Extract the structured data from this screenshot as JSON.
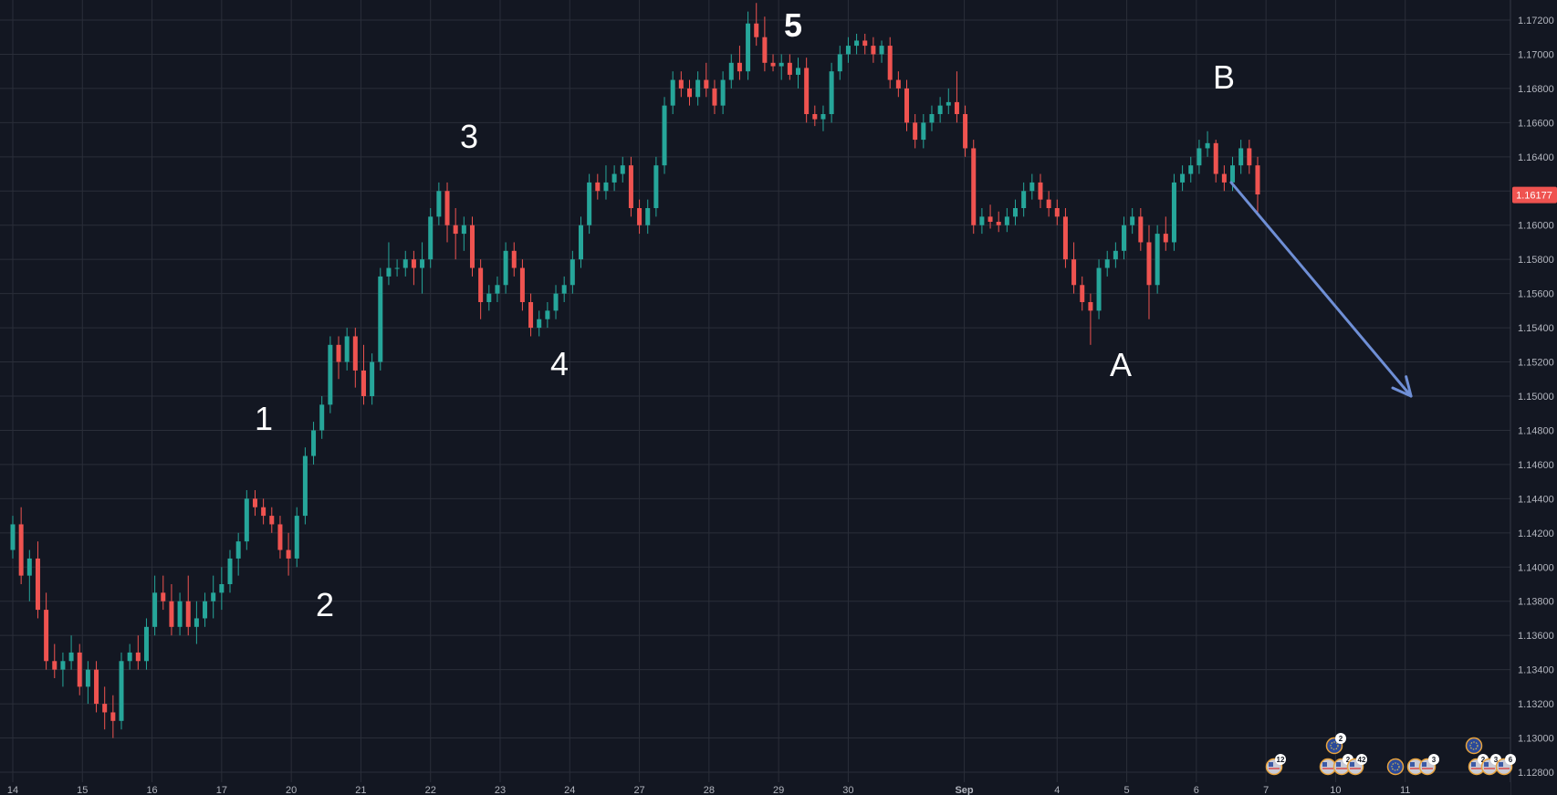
{
  "chart_data": {
    "type": "candlestick",
    "y_axis": {
      "ticks": [
        "1.17200",
        "1.17000",
        "1.16800",
        "1.16600",
        "1.16400",
        "1.16200",
        "1.16000",
        "1.15800",
        "1.15600",
        "1.15400",
        "1.15200",
        "1.15000",
        "1.14800",
        "1.14600",
        "1.14400",
        "1.14200",
        "1.14000",
        "1.13800",
        "1.13600",
        "1.13400",
        "1.13200",
        "1.13000",
        "1.12800"
      ],
      "range": [
        1.1274,
        1.1736
      ],
      "current_price": "1.16177"
    },
    "x_axis": {
      "ticks": [
        {
          "label": "14",
          "i": 0
        },
        {
          "label": "15",
          "i": 12
        },
        {
          "label": "16",
          "i": 24
        },
        {
          "label": "17",
          "i": 36
        },
        {
          "label": "20",
          "i": 48
        },
        {
          "label": "21",
          "i": 60
        },
        {
          "label": "22",
          "i": 72
        },
        {
          "label": "23",
          "i": 84
        },
        {
          "label": "24",
          "i": 96
        },
        {
          "label": "27",
          "i": 108
        },
        {
          "label": "28",
          "i": 120
        },
        {
          "label": "29",
          "i": 132
        },
        {
          "label": "30",
          "i": 144
        },
        {
          "label": "Sep",
          "i": 164
        },
        {
          "label": "4",
          "i": 180
        },
        {
          "label": "5",
          "i": 192
        },
        {
          "label": "6",
          "i": 204
        },
        {
          "label": "7",
          "i": 216
        },
        {
          "label": "10",
          "i": 228
        },
        {
          "label": "11",
          "i": 240
        }
      ],
      "total_slots": 252
    },
    "candles": [
      [
        1.141,
        1.143,
        1.1405,
        1.1425
      ],
      [
        1.1425,
        1.1435,
        1.139,
        1.1395
      ],
      [
        1.1395,
        1.141,
        1.138,
        1.1405
      ],
      [
        1.1405,
        1.1415,
        1.137,
        1.1375
      ],
      [
        1.1375,
        1.1385,
        1.134,
        1.1345
      ],
      [
        1.1345,
        1.1355,
        1.1335,
        1.134
      ],
      [
        1.134,
        1.135,
        1.133,
        1.1345
      ],
      [
        1.1345,
        1.136,
        1.134,
        1.135
      ],
      [
        1.135,
        1.1355,
        1.1325,
        1.133
      ],
      [
        1.133,
        1.1345,
        1.132,
        1.134
      ],
      [
        1.134,
        1.1345,
        1.1315,
        1.132
      ],
      [
        1.132,
        1.133,
        1.1305,
        1.1315
      ],
      [
        1.1315,
        1.1325,
        1.13,
        1.131
      ],
      [
        1.131,
        1.135,
        1.1305,
        1.1345
      ],
      [
        1.1345,
        1.1355,
        1.134,
        1.135
      ],
      [
        1.135,
        1.136,
        1.134,
        1.1345
      ],
      [
        1.1345,
        1.137,
        1.134,
        1.1365
      ],
      [
        1.1365,
        1.1395,
        1.136,
        1.1385
      ],
      [
        1.1385,
        1.1395,
        1.1375,
        1.138
      ],
      [
        1.138,
        1.139,
        1.136,
        1.1365
      ],
      [
        1.1365,
        1.1385,
        1.136,
        1.138
      ],
      [
        1.138,
        1.1395,
        1.136,
        1.1365
      ],
      [
        1.1365,
        1.138,
        1.1355,
        1.137
      ],
      [
        1.137,
        1.1385,
        1.1365,
        1.138
      ],
      [
        1.138,
        1.1395,
        1.137,
        1.1385
      ],
      [
        1.1385,
        1.14,
        1.1375,
        1.139
      ],
      [
        1.139,
        1.141,
        1.1385,
        1.1405
      ],
      [
        1.1405,
        1.142,
        1.1395,
        1.1415
      ],
      [
        1.1415,
        1.1445,
        1.141,
        1.144
      ],
      [
        1.144,
        1.1445,
        1.143,
        1.1435
      ],
      [
        1.1435,
        1.144,
        1.1425,
        1.143
      ],
      [
        1.143,
        1.1435,
        1.142,
        1.1425
      ],
      [
        1.1425,
        1.143,
        1.1405,
        1.141
      ],
      [
        1.141,
        1.142,
        1.1395,
        1.1405
      ],
      [
        1.1405,
        1.1435,
        1.14,
        1.143
      ],
      [
        1.143,
        1.147,
        1.1425,
        1.1465
      ],
      [
        1.1465,
        1.1485,
        1.146,
        1.148
      ],
      [
        1.148,
        1.15,
        1.1475,
        1.1495
      ],
      [
        1.1495,
        1.1535,
        1.149,
        1.153
      ],
      [
        1.153,
        1.1535,
        1.151,
        1.152
      ],
      [
        1.152,
        1.154,
        1.1515,
        1.1535
      ],
      [
        1.1535,
        1.154,
        1.1505,
        1.1515
      ],
      [
        1.1515,
        1.153,
        1.1495,
        1.15
      ],
      [
        1.15,
        1.1525,
        1.1495,
        1.152
      ],
      [
        1.152,
        1.1575,
        1.1515,
        1.157
      ],
      [
        1.157,
        1.159,
        1.1565,
        1.1575
      ],
      [
        1.1575,
        1.158,
        1.157,
        1.1575
      ],
      [
        1.1575,
        1.1585,
        1.157,
        1.158
      ],
      [
        1.158,
        1.1585,
        1.1565,
        1.1575
      ],
      [
        1.1575,
        1.159,
        1.156,
        1.158
      ],
      [
        1.158,
        1.161,
        1.1575,
        1.1605
      ],
      [
        1.1605,
        1.1625,
        1.16,
        1.162
      ],
      [
        1.162,
        1.1625,
        1.159,
        1.16
      ],
      [
        1.16,
        1.161,
        1.158,
        1.1595
      ],
      [
        1.1595,
        1.1605,
        1.1585,
        1.16
      ],
      [
        1.16,
        1.1605,
        1.157,
        1.1575
      ],
      [
        1.1575,
        1.158,
        1.1545,
        1.1555
      ],
      [
        1.1555,
        1.1565,
        1.155,
        1.156
      ],
      [
        1.156,
        1.157,
        1.1555,
        1.1565
      ],
      [
        1.1565,
        1.159,
        1.156,
        1.1585
      ],
      [
        1.1585,
        1.159,
        1.157,
        1.1575
      ],
      [
        1.1575,
        1.158,
        1.155,
        1.1555
      ],
      [
        1.1555,
        1.156,
        1.1535,
        1.154
      ],
      [
        1.154,
        1.155,
        1.1535,
        1.1545
      ],
      [
        1.1545,
        1.1555,
        1.154,
        1.155
      ],
      [
        1.155,
        1.1565,
        1.1545,
        1.156
      ],
      [
        1.156,
        1.157,
        1.1555,
        1.1565
      ],
      [
        1.1565,
        1.1585,
        1.156,
        1.158
      ],
      [
        1.158,
        1.1605,
        1.1575,
        1.16
      ],
      [
        1.16,
        1.163,
        1.1595,
        1.1625
      ],
      [
        1.1625,
        1.163,
        1.1615,
        1.162
      ],
      [
        1.162,
        1.1635,
        1.1615,
        1.1625
      ],
      [
        1.1625,
        1.1635,
        1.162,
        1.163
      ],
      [
        1.163,
        1.164,
        1.1625,
        1.1635
      ],
      [
        1.1635,
        1.164,
        1.1605,
        1.161
      ],
      [
        1.161,
        1.1615,
        1.1595,
        1.16
      ],
      [
        1.16,
        1.1615,
        1.1595,
        1.161
      ],
      [
        1.161,
        1.164,
        1.1605,
        1.1635
      ],
      [
        1.1635,
        1.1675,
        1.163,
        1.167
      ],
      [
        1.167,
        1.169,
        1.1665,
        1.1685
      ],
      [
        1.1685,
        1.169,
        1.1675,
        1.168
      ],
      [
        1.168,
        1.1685,
        1.167,
        1.1675
      ],
      [
        1.1675,
        1.169,
        1.167,
        1.1685
      ],
      [
        1.1685,
        1.1695,
        1.1675,
        1.168
      ],
      [
        1.168,
        1.1685,
        1.1665,
        1.167
      ],
      [
        1.167,
        1.169,
        1.1665,
        1.1685
      ],
      [
        1.1685,
        1.17,
        1.168,
        1.1695
      ],
      [
        1.1695,
        1.1705,
        1.1685,
        1.169
      ],
      [
        1.169,
        1.1725,
        1.1685,
        1.1718
      ],
      [
        1.1718,
        1.173,
        1.1705,
        1.171
      ],
      [
        1.171,
        1.1722,
        1.169,
        1.1695
      ],
      [
        1.1695,
        1.17,
        1.169,
        1.1693
      ],
      [
        1.1693,
        1.17,
        1.1685,
        1.1695
      ],
      [
        1.1695,
        1.17,
        1.1685,
        1.1688
      ],
      [
        1.1688,
        1.1698,
        1.168,
        1.1692
      ],
      [
        1.1692,
        1.1698,
        1.166,
        1.1665
      ],
      [
        1.1665,
        1.167,
        1.1658,
        1.1662
      ],
      [
        1.1662,
        1.167,
        1.1655,
        1.1665
      ],
      [
        1.1665,
        1.1695,
        1.166,
        1.169
      ],
      [
        1.169,
        1.1705,
        1.1685,
        1.17
      ],
      [
        1.17,
        1.171,
        1.1695,
        1.1705
      ],
      [
        1.1705,
        1.1712,
        1.17,
        1.1708
      ],
      [
        1.1708,
        1.1712,
        1.17,
        1.1705
      ],
      [
        1.1705,
        1.171,
        1.1695,
        1.17
      ],
      [
        1.17,
        1.1708,
        1.1695,
        1.1705
      ],
      [
        1.1705,
        1.171,
        1.168,
        1.1685
      ],
      [
        1.1685,
        1.169,
        1.1675,
        1.168
      ],
      [
        1.168,
        1.1685,
        1.1655,
        1.166
      ],
      [
        1.166,
        1.1665,
        1.1645,
        1.165
      ],
      [
        1.165,
        1.1665,
        1.1645,
        1.166
      ],
      [
        1.166,
        1.167,
        1.1655,
        1.1665
      ],
      [
        1.1665,
        1.1675,
        1.166,
        1.167
      ],
      [
        1.167,
        1.168,
        1.1665,
        1.1672
      ],
      [
        1.1672,
        1.169,
        1.166,
        1.1665
      ],
      [
        1.1665,
        1.167,
        1.164,
        1.1645
      ],
      [
        1.1645,
        1.165,
        1.1595,
        1.16
      ],
      [
        1.16,
        1.161,
        1.1595,
        1.1605
      ],
      [
        1.1605,
        1.1612,
        1.1598,
        1.1602
      ],
      [
        1.1602,
        1.1608,
        1.1596,
        1.16
      ],
      [
        1.16,
        1.161,
        1.1596,
        1.1605
      ],
      [
        1.1605,
        1.1615,
        1.16,
        1.161
      ],
      [
        1.161,
        1.1625,
        1.1605,
        1.162
      ],
      [
        1.162,
        1.163,
        1.1615,
        1.1625
      ],
      [
        1.1625,
        1.163,
        1.161,
        1.1615
      ],
      [
        1.1615,
        1.162,
        1.1605,
        1.161
      ],
      [
        1.161,
        1.1615,
        1.16,
        1.1605
      ],
      [
        1.1605,
        1.161,
        1.1575,
        1.158
      ],
      [
        1.158,
        1.159,
        1.156,
        1.1565
      ],
      [
        1.1565,
        1.157,
        1.155,
        1.1555
      ],
      [
        1.1555,
        1.156,
        1.153,
        1.155
      ],
      [
        1.155,
        1.158,
        1.1545,
        1.1575
      ],
      [
        1.1575,
        1.1585,
        1.157,
        1.158
      ],
      [
        1.158,
        1.159,
        1.1575,
        1.1585
      ],
      [
        1.1585,
        1.1605,
        1.158,
        1.16
      ],
      [
        1.16,
        1.161,
        1.1595,
        1.1605
      ],
      [
        1.1605,
        1.161,
        1.1585,
        1.159
      ],
      [
        1.159,
        1.16,
        1.1545,
        1.1565
      ],
      [
        1.1565,
        1.16,
        1.156,
        1.1595
      ],
      [
        1.1595,
        1.1605,
        1.1585,
        1.159
      ],
      [
        1.159,
        1.163,
        1.1585,
        1.1625
      ],
      [
        1.1625,
        1.1635,
        1.162,
        1.163
      ],
      [
        1.163,
        1.164,
        1.1625,
        1.1635
      ],
      [
        1.1635,
        1.165,
        1.163,
        1.1645
      ],
      [
        1.1645,
        1.1655,
        1.164,
        1.1648
      ],
      [
        1.1648,
        1.165,
        1.1625,
        1.163
      ],
      [
        1.163,
        1.1635,
        1.162,
        1.1625
      ],
      [
        1.1625,
        1.164,
        1.162,
        1.1635
      ],
      [
        1.1635,
        1.165,
        1.163,
        1.1645
      ],
      [
        1.1645,
        1.165,
        1.163,
        1.1635
      ],
      [
        1.1635,
        1.164,
        1.1606,
        1.1618
      ]
    ],
    "candle_start_slot": 0,
    "candle_slot_step": 1.44,
    "wave_labels": [
      "1",
      "2",
      "3",
      "4",
      "5",
      "A",
      "B"
    ],
    "projection": {
      "from": [
        210,
        1.1625
      ],
      "to": [
        241,
        1.15
      ]
    },
    "event_badges": [
      "12",
      "2",
      "2",
      "42",
      "3",
      "2",
      "3",
      "6"
    ],
    "colors": {
      "background": "#131722",
      "grid": "#2a2e39",
      "up": "#26a69a",
      "down": "#ef5350",
      "text": "#ffffff",
      "axis_text": "#b2b5be",
      "arrow": "#6f8fd6",
      "price_tag": "#ef5350"
    }
  }
}
